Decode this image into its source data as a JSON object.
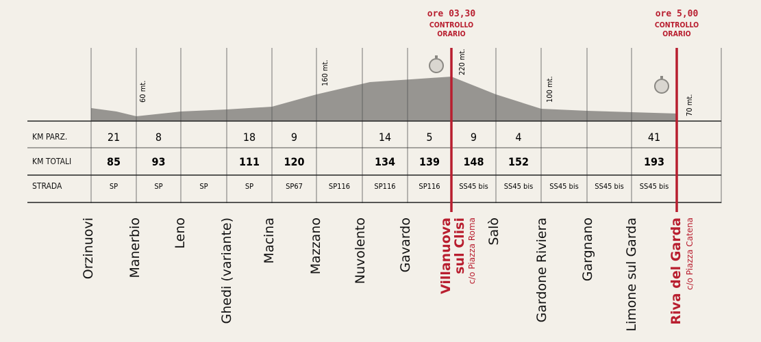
{
  "chart_data": {
    "type": "area",
    "rows": [
      {
        "key": "km_parz",
        "label": "KM PARZ."
      },
      {
        "key": "km_totali",
        "label": "KM TOTALI"
      },
      {
        "key": "strada",
        "label": "STRADA"
      }
    ],
    "places": [
      {
        "name": "Orzinuovi",
        "km_parz": "21",
        "km_totali": "85",
        "strada": "SP"
      },
      {
        "name": "Manerbio",
        "km_parz": "8",
        "km_totali": "93",
        "strada": "SP",
        "altitude": "60 mt."
      },
      {
        "name": "Leno",
        "km_parz": "",
        "km_totali": "",
        "strada": "SP"
      },
      {
        "name": "Ghedi (variante)",
        "km_parz": "18",
        "km_totali": "111",
        "strada": "SP"
      },
      {
        "name": "Macina",
        "km_parz": "9",
        "km_totali": "120",
        "strada": "SP67"
      },
      {
        "name": "Mazzano",
        "km_parz": "",
        "km_totali": "",
        "strada": "SP116",
        "altitude": "160 mt."
      },
      {
        "name": "Nuvolento",
        "km_parz": "14",
        "km_totali": "134",
        "strada": "SP116"
      },
      {
        "name": "Gavardo",
        "km_parz": "5",
        "km_totali": "139",
        "strada": "SP116"
      },
      {
        "name": "Villanuova sul Clisi",
        "line1": "Villanuova",
        "line2": "sul Clisi",
        "sub": "c/o Piazza Roma",
        "highlight": true,
        "altitude": "220 mt.",
        "km_parz": "9",
        "km_totali": "148",
        "strada": "SS45 bis",
        "control": {
          "time": "ore 03,30",
          "line1": "CONTROLLO",
          "line2": "ORARIO"
        }
      },
      {
        "name": "Salò",
        "km_parz": "4",
        "km_totali": "152",
        "strada": "SS45 bis"
      },
      {
        "name": "Gardone Riviera",
        "km_parz": "",
        "km_totali": "",
        "strada": "SS45 bis",
        "altitude": "100 mt."
      },
      {
        "name": "Gargnano",
        "km_parz": "",
        "km_totali": "",
        "strada": "SS45 bis"
      },
      {
        "name": "Limone sul Garda",
        "km_parz": "41",
        "km_totali": "193",
        "strada": "SS45 bis"
      },
      {
        "name": "Riva del Garda",
        "sub": "c/o Piazza Catena",
        "highlight": true,
        "altitude": "70 mt.",
        "control": {
          "time": "ore 5,00",
          "line1": "CONTROLLO",
          "line2": "ORARIO"
        }
      }
    ],
    "colors": {
      "profile": "#979591",
      "highlight": "#b81e2f",
      "text": "#111111"
    }
  }
}
